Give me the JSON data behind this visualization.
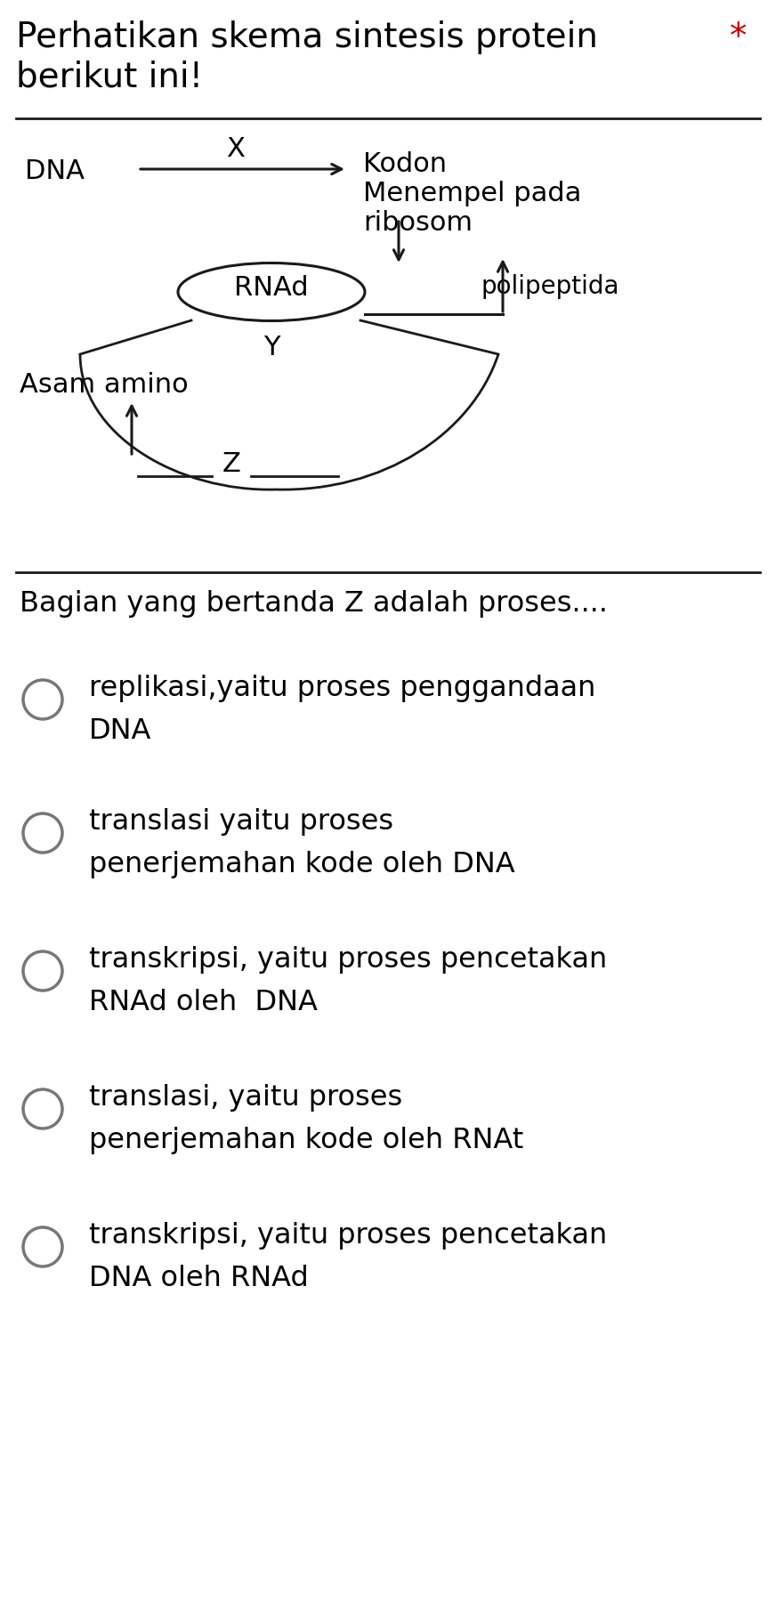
{
  "title_line1": "Perhatikan skema sintesis protein",
  "title_line2": "berikut ini!",
  "asterisk": "*",
  "diagram_question": "Bagian yang bertanda Z adalah proses....",
  "options": [
    "replikasi,yaitu proses penggandaan\nDNA",
    "translasi yaitu proses\npenerjemahan kode oleh DNA",
    "transkripsi, yaitu proses pencetakan\nRNAd oleh  DNA",
    "translasi, yaitu proses\npenerjemahan kode oleh RNAt",
    "transkripsi, yaitu proses pencetakan\nDNA oleh RNAd"
  ],
  "bg_color": "#ffffff",
  "text_color": "#000000",
  "asterisk_color": "#cc0000",
  "dna_label": "DNA",
  "x_label": "X",
  "kodon_label": "Kodon",
  "menempel_label": "Menempel pada",
  "ribosom_label": "ribosom",
  "rnad_label": "RNAd",
  "polipeptida_label": "polipeptida",
  "y_label": "Y",
  "asam_label": "Asam amino",
  "z_label": "Z",
  "title_fontsize": 28,
  "diagram_fontsize": 22,
  "question_fontsize": 23,
  "option_fontsize": 23
}
